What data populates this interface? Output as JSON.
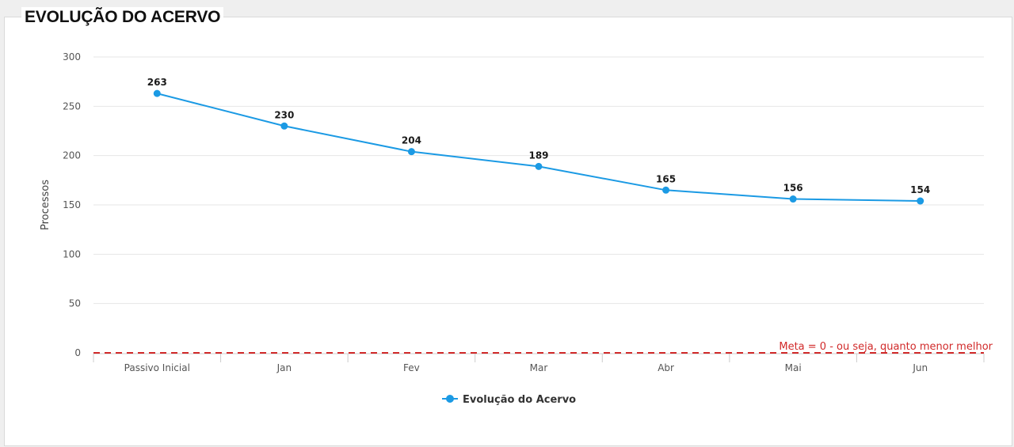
{
  "title": "EVOLUÇÃO DO ACERVO",
  "chart_data": {
    "type": "line",
    "title": "EVOLUÇÃO DO ACERVO",
    "xlabel": "",
    "ylabel": "Processos",
    "categories": [
      "Passivo Inicial",
      "Jan",
      "Fev",
      "Mar",
      "Abr",
      "Mai",
      "Jun"
    ],
    "series": [
      {
        "name": "Evolução do Acervo",
        "values": [
          263,
          230,
          204,
          189,
          165,
          156,
          154
        ],
        "color": "#1b9ae4"
      }
    ],
    "ylim": [
      0,
      300
    ],
    "yticks": [
      0,
      50,
      100,
      150,
      200,
      250,
      300
    ],
    "grid": true,
    "legend": "bottom-center",
    "target_line": {
      "value": 0,
      "label": "Meta = 0 - ou seja, quanto menor melhor",
      "color": "#d12a2a",
      "style": "dashed"
    }
  }
}
